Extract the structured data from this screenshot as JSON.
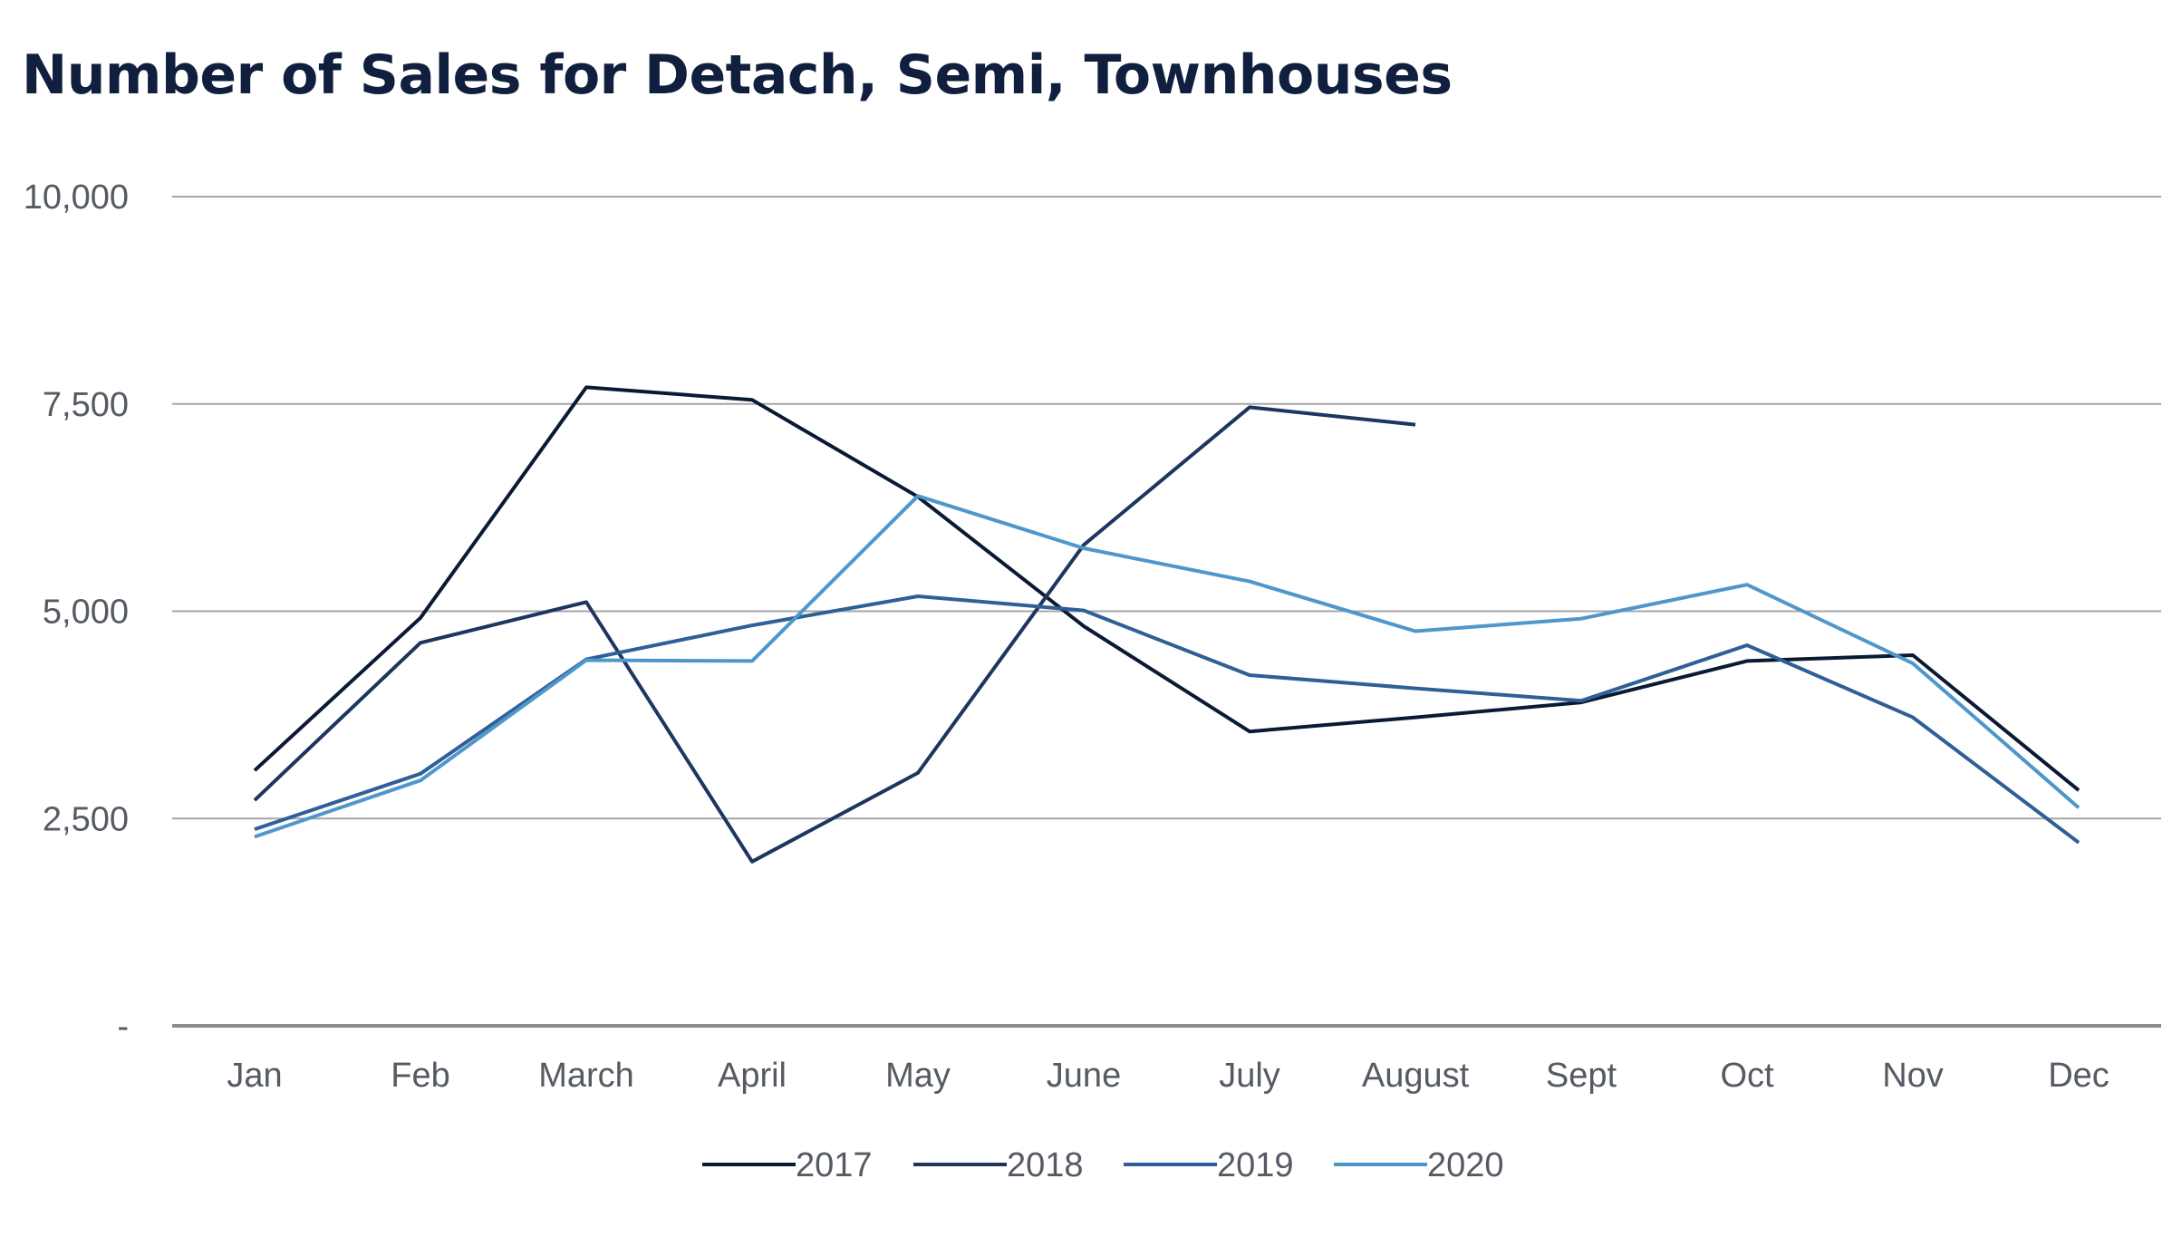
{
  "chart_data": {
    "type": "line",
    "title": "Number of Sales for Detach, Semi, Townhouses",
    "xlabel": "",
    "ylabel": "",
    "categories": [
      "Jan",
      "Feb",
      "March",
      "April",
      "May",
      "June",
      "July",
      "August",
      "Sept",
      "Oct",
      "Nov",
      "Dec"
    ],
    "ylim": [
      0,
      10000
    ],
    "yticks": [
      0,
      2500,
      5000,
      7500,
      10000
    ],
    "ytick_labels": [
      "-",
      "2,500",
      "5,000",
      "7,500",
      "10,000"
    ],
    "grid": "horizontal",
    "legend_position": "bottom",
    "series": [
      {
        "name": "2017",
        "color": "#0b1a33",
        "values": [
          3080,
          4920,
          7700,
          7550,
          6380,
          4820,
          3550,
          3720,
          3900,
          4400,
          4470,
          2840
        ]
      },
      {
        "name": "2018",
        "color": "#1e3560",
        "values": [
          2720,
          4620,
          5110,
          1980,
          3050,
          5800,
          7460,
          7250,
          null,
          null,
          null,
          null
        ]
      },
      {
        "name": "2019",
        "color": "#2f5f97",
        "values": [
          2370,
          3040,
          4420,
          4830,
          5180,
          5010,
          4230,
          4070,
          3920,
          4590,
          3720,
          2210
        ]
      },
      {
        "name": "2020",
        "color": "#4f97cb",
        "values": [
          2280,
          2960,
          4410,
          4400,
          6390,
          5760,
          5360,
          4760,
          4910,
          5320,
          4370,
          2630
        ]
      }
    ]
  }
}
